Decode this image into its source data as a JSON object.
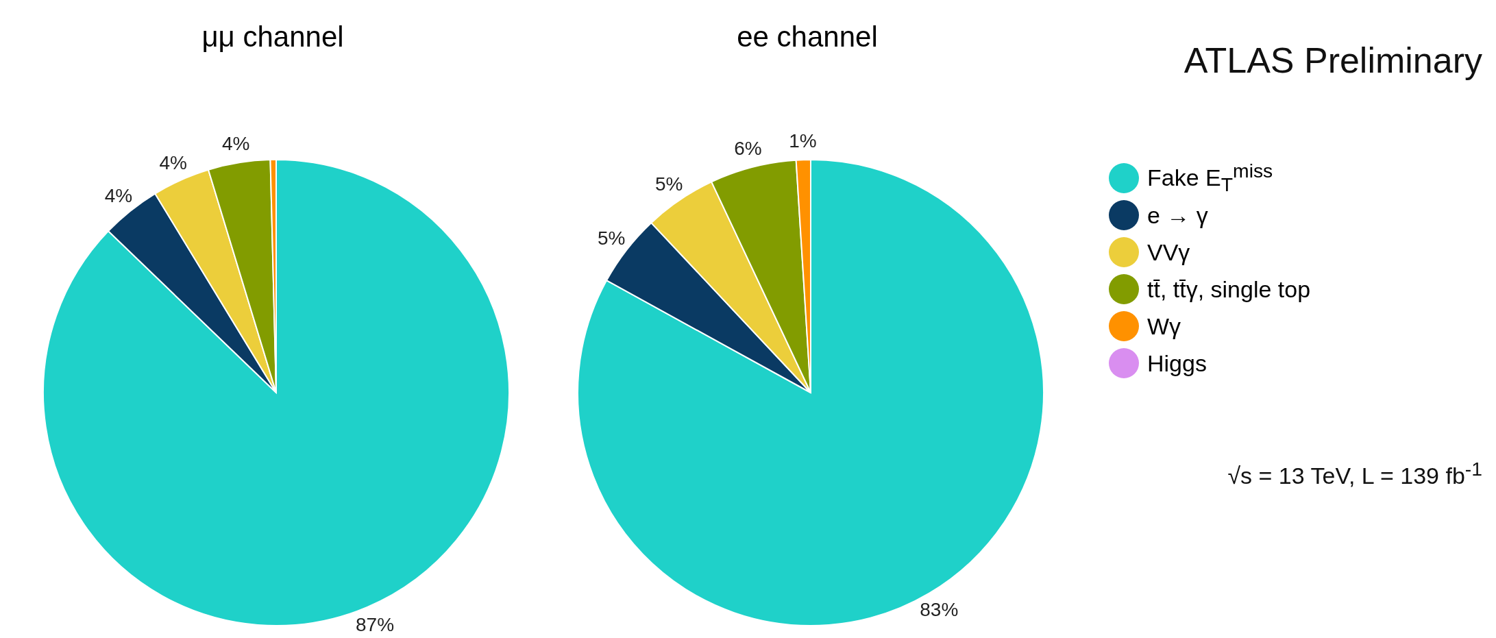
{
  "chart_data": [
    {
      "type": "pie",
      "title": "μμ channel",
      "categories": [
        null,
        null,
        null,
        null,
        null,
        null
      ],
      "values": [
        87.2,
        4.1,
        4.0,
        4.3,
        0.4,
        0
      ],
      "colors": [
        "#1fd1c9",
        "#0a3a63",
        "#ecce3b",
        "#829c00",
        "#ff9100",
        "#d98ef0"
      ],
      "value_labels": [
        "87%",
        "4%",
        "4%",
        "4%",
        null,
        null
      ]
    },
    {
      "type": "pie",
      "title": "ee channel",
      "categories": [
        "Fake E$_{T}$$^{miss}$",
        "e → γ",
        "VVγ",
        "tt̄, tt̄γ, single top",
        "Wγ",
        "Higgs"
      ],
      "values": [
        83,
        5,
        5,
        6,
        1,
        0
      ],
      "colors": [
        "#1fd1c9",
        "#0a3a63",
        "#ecce3b",
        "#829c00",
        "#ff9100",
        "#d98ef0"
      ],
      "value_labels": [
        "83%",
        "5%",
        "5%",
        "6%",
        "1%",
        null
      ],
      "legend": "right",
      "annotations": [
        "ATLAS Preliminary",
        "√s = 13 TeV, L = 139 fb$^{-1}$"
      ]
    }
  ]
}
